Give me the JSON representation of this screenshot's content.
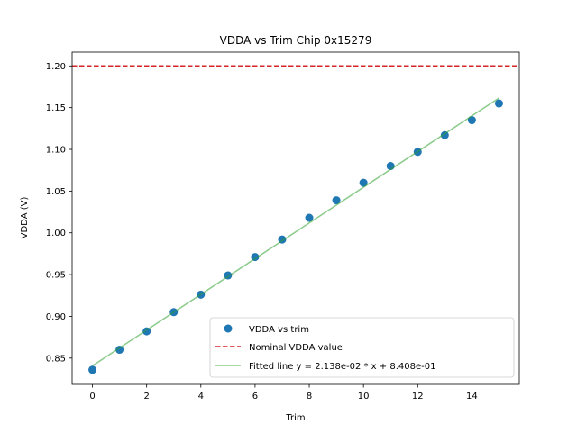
{
  "chart_data": {
    "type": "scatter",
    "title": "VDDA vs Trim Chip 0x15279",
    "xlabel": "Trim",
    "ylabel": "VDDA (V)",
    "xlim": [
      -0.75,
      15.75
    ],
    "ylim": [
      0.8185,
      1.2165
    ],
    "xticks": [
      0,
      2,
      4,
      6,
      8,
      10,
      12,
      14
    ],
    "xtick_labels": [
      "0",
      "2",
      "4",
      "6",
      "8",
      "10",
      "12",
      "14"
    ],
    "yticks": [
      0.85,
      0.9,
      0.95,
      1.0,
      1.05,
      1.1,
      1.15,
      1.2
    ],
    "ytick_labels": [
      "0.85",
      "0.90",
      "0.95",
      "1.00",
      "1.05",
      "1.10",
      "1.15",
      "1.20"
    ],
    "grid": false,
    "legend_position": "lower-right",
    "series": [
      {
        "name": "VDDA vs trim",
        "kind": "scatter",
        "color": "#1f77b4",
        "x": [
          0,
          1,
          2,
          3,
          4,
          5,
          6,
          7,
          8,
          9,
          10,
          11,
          12,
          13,
          14,
          15
        ],
        "y": [
          0.836,
          0.86,
          0.882,
          0.905,
          0.926,
          0.949,
          0.971,
          0.992,
          1.018,
          1.039,
          1.06,
          1.08,
          1.097,
          1.117,
          1.135,
          1.155
        ]
      },
      {
        "name": "Nominal VDDA value",
        "kind": "hline",
        "color": "#d62728",
        "y": 1.2
      },
      {
        "name": "Fitted line y = 2.138e-02 * x + 8.408e-01",
        "kind": "line",
        "color": "#2ca02c",
        "slope": 0.02138,
        "intercept": 0.8408,
        "x_range": [
          0,
          15
        ]
      }
    ]
  }
}
